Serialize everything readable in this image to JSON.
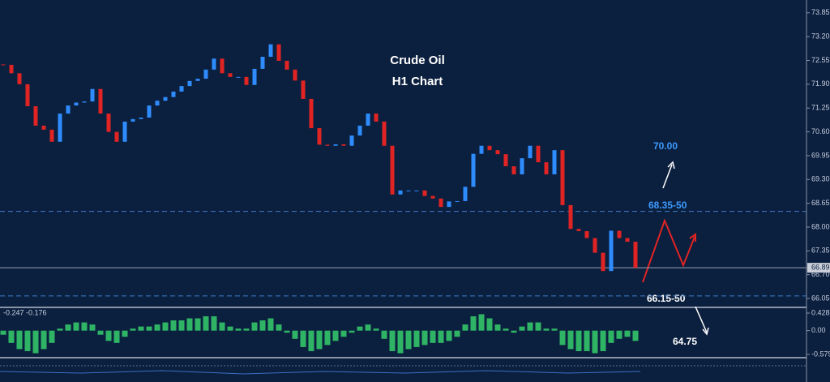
{
  "chart_data": [
    {
      "type": "candlestick",
      "title": "Crude Oil",
      "subtitle": "H1 Chart",
      "values": [
        72.43,
        72.2,
        71.9,
        71.3,
        70.77,
        70.66,
        70.33,
        71.1,
        71.32,
        71.4,
        71.43,
        71.77,
        71.1,
        70.6,
        70.33,
        70.88,
        70.95,
        70.99,
        71.32,
        71.45,
        71.55,
        71.7,
        71.85,
        71.99,
        72.05,
        72.3,
        72.6,
        72.2,
        72.1,
        72.1,
        71.88,
        72.32,
        72.65,
        72.99,
        72.54,
        72.3,
        72.0,
        71.5,
        70.7,
        70.25,
        70.22,
        70.26,
        70.22,
        70.5,
        70.77,
        71.1,
        70.88,
        70.22,
        68.89,
        69.0,
        69.0,
        69.0,
        68.85,
        68.78,
        68.55,
        68.7,
        68.71,
        69.1,
        70.0,
        70.22,
        70.1,
        69.99,
        69.66,
        69.44,
        69.88,
        70.22,
        69.77,
        69.44,
        70.1,
        68.6,
        67.95,
        67.89,
        67.7,
        67.3,
        66.8,
        67.9,
        67.7,
        67.6,
        66.89
      ],
      "up_color": "#2f8cff",
      "down_color": "#e02424",
      "ylim": [
        65.83,
        74.2
      ],
      "yticks": [
        73.85,
        {
          "value": 73.2,
          "label": "73.20"
        },
        72.55,
        {
          "value": 71.9,
          "label": "71.90"
        },
        71.25,
        {
          "value": 70.6,
          "label": "70.60"
        },
        69.95,
        {
          "value": 69.3,
          "label": "69.30"
        },
        68.65,
        {
          "value": 68,
          "label": "68.00"
        },
        67.35,
        {
          "value": 66.7,
          "label": "66.70"
        },
        66.05
      ],
      "last_price": 66.89,
      "hlines": [
        68.43,
        66.12
      ],
      "annotations": [
        "70.00",
        "68.35-50",
        "66.15-50",
        "64.75"
      ]
    },
    {
      "type": "histogram",
      "label": "-0.247 -0.176",
      "color": "#33c46a",
      "values": [
        -0.1,
        -0.3,
        -0.45,
        -0.5,
        -0.55,
        -0.45,
        -0.3,
        0.05,
        0.15,
        0.2,
        0.2,
        0.15,
        -0.1,
        -0.25,
        -0.3,
        -0.15,
        0.05,
        0.1,
        0.1,
        0.15,
        0.2,
        0.25,
        0.25,
        0.3,
        0.3,
        0.35,
        0.35,
        0.2,
        0.1,
        0.05,
        0.05,
        0.2,
        0.25,
        0.3,
        0.15,
        -0.05,
        -0.2,
        -0.4,
        -0.5,
        -0.45,
        -0.35,
        -0.25,
        -0.15,
        -0.05,
        0.1,
        0.15,
        0.05,
        -0.2,
        -0.5,
        -0.55,
        -0.45,
        -0.4,
        -0.35,
        -0.3,
        -0.3,
        -0.25,
        -0.15,
        0.15,
        0.35,
        0.4,
        0.3,
        0.15,
        0.05,
        -0.05,
        0.1,
        0.2,
        0.2,
        0.05,
        0.05,
        -0.35,
        -0.45,
        -0.5,
        -0.5,
        -0.55,
        -0.5,
        -0.3,
        -0.2,
        -0.15,
        -0.25
      ],
      "ylim": [
        -0.639,
        0.547
      ],
      "yticks": [
        0.428,
        {
          "value": 0,
          "label": "0.00"
        },
        -0.579
      ]
    }
  ]
}
